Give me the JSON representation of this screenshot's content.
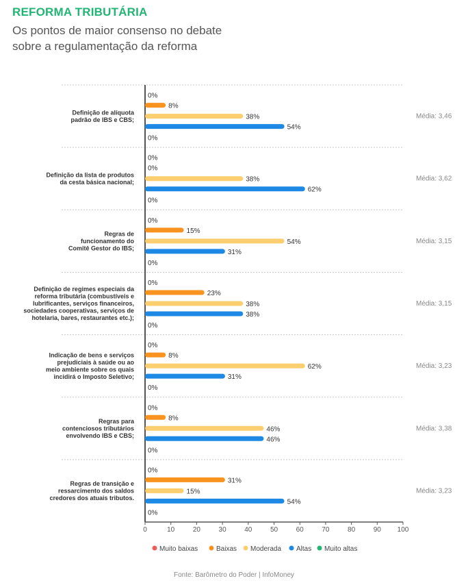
{
  "header": {
    "title": "REFORMA TRIBUTÁRIA",
    "subtitle": "Os pontos de maior consenso no debate sobre a regulamentação da reforma"
  },
  "source": "Fonte: Barômetro do Poder | InfoMoney",
  "colors": {
    "muito_baixas": "#f05a5a",
    "baixas": "#f7931e",
    "moderada": "#fbcf6f",
    "altas": "#1e88e5",
    "muito_altas": "#22b573",
    "axis": "#555555",
    "grid": "#c8c8c8"
  },
  "chart_data": {
    "type": "bar",
    "orientation": "horizontal",
    "x_ticks": [
      "0",
      "10",
      "20",
      "30",
      "40",
      "50",
      "60",
      "70",
      "80",
      "90",
      "100"
    ],
    "xlim": [
      0,
      100
    ],
    "legend_position": "bottom",
    "series_names": [
      "Muito baixas",
      "Baixas",
      "Moderada",
      "Altas",
      "Muito altas"
    ],
    "categories": [
      {
        "label": [
          "Definição de alíquota",
          "padrão de IBS e CBS;"
        ],
        "values": [
          0,
          8,
          38,
          54,
          0
        ],
        "value_labels": [
          "0%",
          "8%",
          "38%",
          "54%",
          "0%"
        ],
        "media": "Média: 3,46"
      },
      {
        "label": [
          "Definição da lista de produtos",
          "da cesta básica nacional;"
        ],
        "values": [
          0,
          0,
          38,
          62,
          0
        ],
        "value_labels": [
          "0%",
          "0%",
          "38%",
          "62%",
          "0%"
        ],
        "media": "Média: 3,62"
      },
      {
        "label": [
          "Regras de",
          "funcionamento do",
          "Comitê Gestor do IBS;"
        ],
        "values": [
          0,
          15,
          54,
          31,
          0
        ],
        "value_labels": [
          "0%",
          "15%",
          "54%",
          "31%",
          "0%"
        ],
        "media": "Média: 3,15"
      },
      {
        "label": [
          "Definição de regimes especiais da",
          "reforma tributária (combustíveis e",
          "lubrificantes, serviços financeiros,",
          "sociedades cooperativas, serviços de",
          "hotelaria, bares, restaurantes etc.);"
        ],
        "values": [
          0,
          23,
          38,
          38,
          0
        ],
        "value_labels": [
          "0%",
          "23%",
          "38%",
          "38%",
          "0%"
        ],
        "media": "Média: 3,15"
      },
      {
        "label": [
          "Indicação de bens e serviços",
          "prejudiciais à saúde ou ao",
          "meio ambiente sobre os quais",
          "incidirá o Imposto Seletivo;"
        ],
        "values": [
          0,
          8,
          62,
          31,
          0
        ],
        "value_labels": [
          "0%",
          "8%",
          "62%",
          "31%",
          "0%"
        ],
        "media": "Média: 3,23"
      },
      {
        "label": [
          "Regras para",
          "contenciosos tributários",
          "envolvendo IBS e CBS;"
        ],
        "values": [
          0,
          8,
          46,
          46,
          0
        ],
        "value_labels": [
          "0%",
          "8%",
          "46%",
          "46%",
          "0%"
        ],
        "media": "Média: 3,38"
      },
      {
        "label": [
          "Regras de transição e",
          "ressarcimento dos saldos",
          "credores dos atuais tributos."
        ],
        "values": [
          0,
          31,
          15,
          54,
          0
        ],
        "value_labels": [
          "0%",
          "31%",
          "15%",
          "54%",
          "0%"
        ],
        "media": "Média: 3,23"
      }
    ]
  }
}
